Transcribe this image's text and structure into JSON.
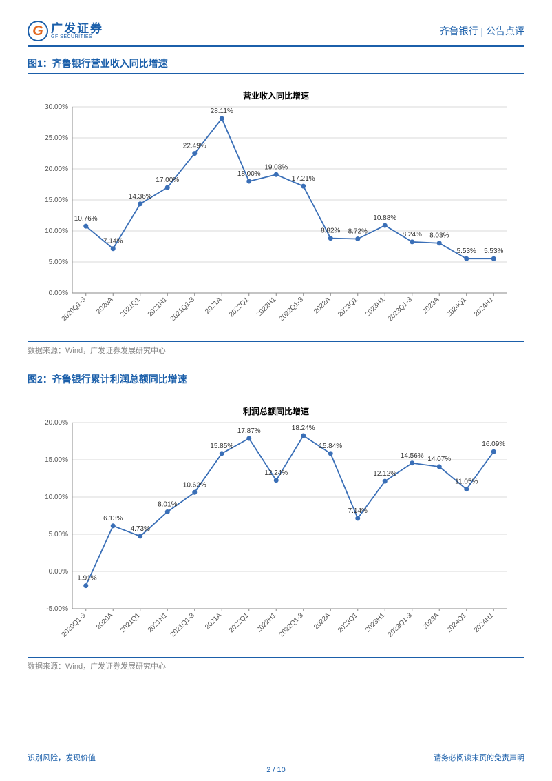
{
  "header": {
    "logo_cn": "广发证券",
    "logo_en": "GF SECURITIES",
    "right": "齐鲁银行 | 公告点评"
  },
  "charts": [
    {
      "figure_label": "图1：齐鲁银行营业收入同比增速",
      "chart_title": "营业收入同比增速",
      "source": "数据来源：Wind，广发证券发展研究中心",
      "line_color": "#3a6fb7",
      "marker_color": "#3a6fb7",
      "marker_radius": 3.5,
      "grid_color": "#d9d9d9",
      "axis_color": "#888888",
      "ylim": [
        0,
        30
      ],
      "ytick_step": 5,
      "ytick_format": "pct2",
      "categories": [
        "2020Q1-3",
        "2020A",
        "2021Q1",
        "2021H1",
        "2021Q1-3",
        "2021A",
        "2022Q1",
        "2022H1",
        "2022Q1-3",
        "2022A",
        "2023Q1",
        "2023H1",
        "2023Q1-3",
        "2023A",
        "2024Q1",
        "2024H1"
      ],
      "values": [
        10.76,
        7.14,
        14.36,
        17.0,
        22.49,
        28.11,
        18.0,
        19.08,
        17.21,
        8.82,
        8.72,
        10.88,
        8.24,
        8.03,
        5.53,
        5.53
      ],
      "value_labels": [
        "10.76%",
        "7.14%",
        "14.36%",
        "17.00%",
        "22.49%",
        "28.11%",
        "18.00%",
        "19.08%",
        "17.21%",
        "8.82%",
        "8.72%",
        "10.88%",
        "8.24%",
        "8.03%",
        "5.53%",
        "5.53%"
      ]
    },
    {
      "figure_label": "图2：齐鲁银行累计利润总额同比增速",
      "chart_title": "利润总额同比增速",
      "source": "数据来源：Wind，广发证券发展研究中心",
      "line_color": "#3a6fb7",
      "marker_color": "#3a6fb7",
      "marker_radius": 3.5,
      "grid_color": "#d9d9d9",
      "axis_color": "#888888",
      "ylim": [
        -5,
        20
      ],
      "ytick_step": 5,
      "ytick_format": "pct2",
      "categories": [
        "2020Q1-3",
        "2020A",
        "2021Q1",
        "2021H1",
        "2021Q1-3",
        "2021A",
        "2022Q1",
        "2022H1",
        "2022Q1-3",
        "2022A",
        "2023Q1",
        "2023H1",
        "2023Q1-3",
        "2023A",
        "2024Q1",
        "2024H1"
      ],
      "values": [
        -1.91,
        6.13,
        4.73,
        8.01,
        10.62,
        15.85,
        17.87,
        12.24,
        18.24,
        15.84,
        7.14,
        12.12,
        14.56,
        14.07,
        11.05,
        16.09
      ],
      "value_labels": [
        "-1.91%",
        "6.13%",
        "4.73%",
        "8.01%",
        "10.62%",
        "15.85%",
        "17.87%",
        "12.24%",
        "18.24%",
        "15.84%",
        "7.14%",
        "12.12%",
        "14.56%",
        "14.07%",
        "11.05%",
        "16.09%"
      ]
    }
  ],
  "footer": {
    "left": "识别风险，发现价值",
    "right": "请务必阅读末页的免责声明",
    "page": "2 / 10"
  }
}
